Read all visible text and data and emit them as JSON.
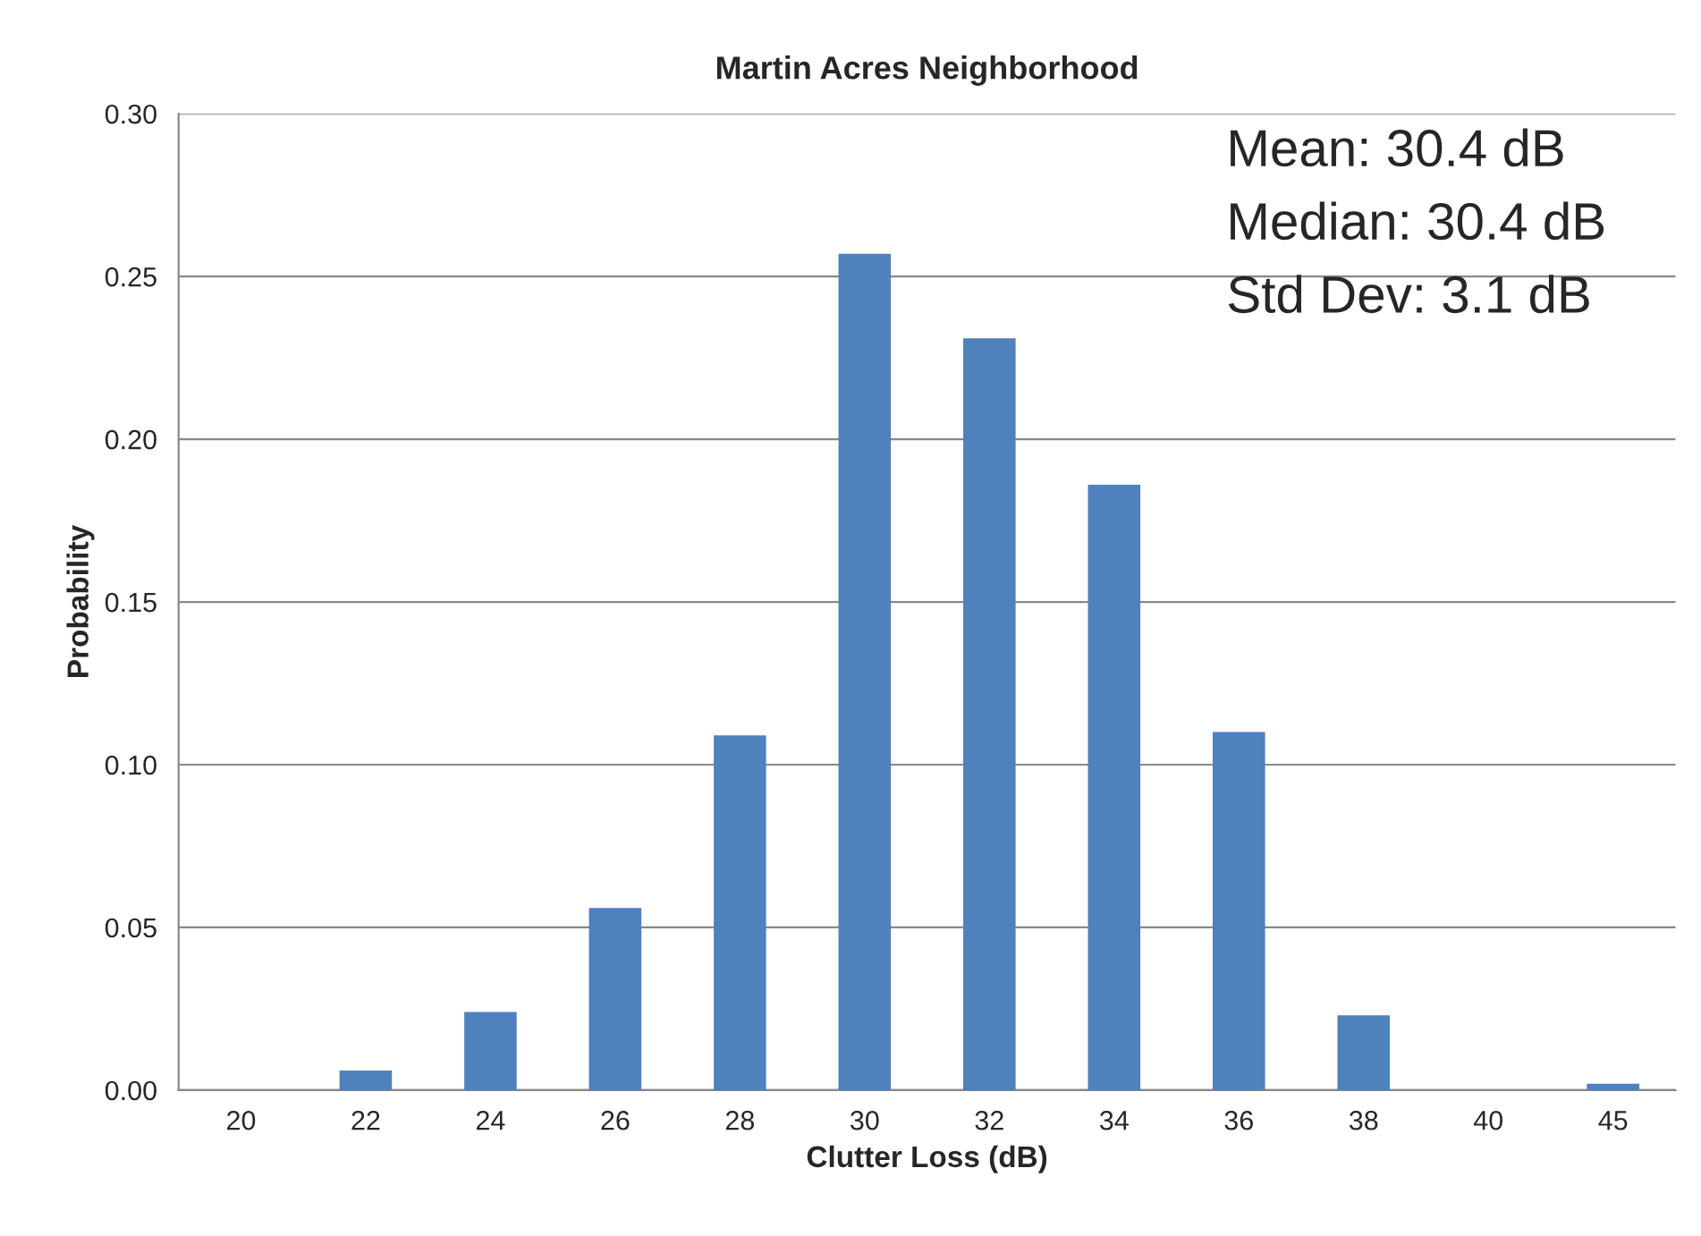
{
  "chart_data": {
    "type": "bar",
    "title": "Martin Acres Neighborhood",
    "xlabel": "Clutter Loss (dB)",
    "ylabel": "Probability",
    "categories": [
      "20",
      "22",
      "24",
      "26",
      "28",
      "30",
      "32",
      "34",
      "36",
      "38",
      "40",
      "45"
    ],
    "values": [
      0,
      0.006,
      0.024,
      0.056,
      0.109,
      0.257,
      0.231,
      0.186,
      0.11,
      0.023,
      0,
      0.002
    ],
    "color": "#4f81bd",
    "ylim": [
      0,
      0.3
    ],
    "yticks": [
      {
        "value": 0,
        "label": "0.00"
      },
      {
        "value": 0.05,
        "label": "0.05"
      },
      {
        "value": 0.1,
        "label": "0.10"
      },
      {
        "value": 0.15,
        "label": "0.15"
      },
      {
        "value": 0.2,
        "label": "0.20"
      },
      {
        "value": 0.25,
        "label": "0.25"
      },
      {
        "value": 0.3,
        "label": "0.30"
      }
    ],
    "grid": "y",
    "annotations": [
      "Mean: 30.4 dB",
      "Median: 30.4 dB",
      "Std Dev: 3.1 dB"
    ]
  }
}
